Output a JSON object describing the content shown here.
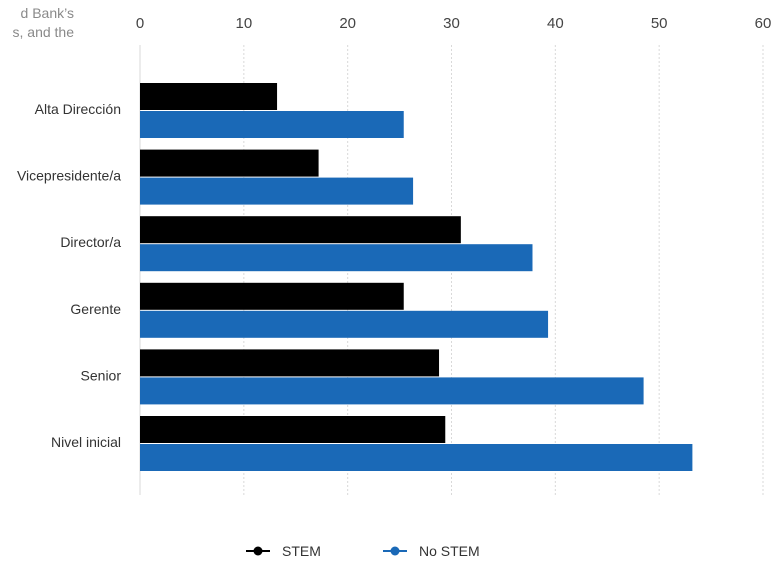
{
  "note_lines": [
    "d Bank’s",
    "s, and the"
  ],
  "chart_data": {
    "type": "bar",
    "orientation": "horizontal",
    "categories": [
      "Alta Dirección",
      "Vicepresidente/a",
      "Director/a",
      "Gerente",
      "Senior",
      "Nivel inicial"
    ],
    "series": [
      {
        "name": "STEM",
        "color": "#000000",
        "values": [
          13.2,
          17.2,
          30.9,
          25.4,
          28.8,
          29.4
        ]
      },
      {
        "name": "No STEM",
        "color": "#1a69b7",
        "values": [
          25.4,
          26.3,
          37.8,
          39.3,
          48.5,
          53.2
        ]
      }
    ],
    "xlim": [
      0,
      60
    ],
    "xticks": [
      "0",
      "10",
      "20",
      "30",
      "40",
      "50",
      "60"
    ],
    "grid": true,
    "legend_position": "bottom"
  }
}
